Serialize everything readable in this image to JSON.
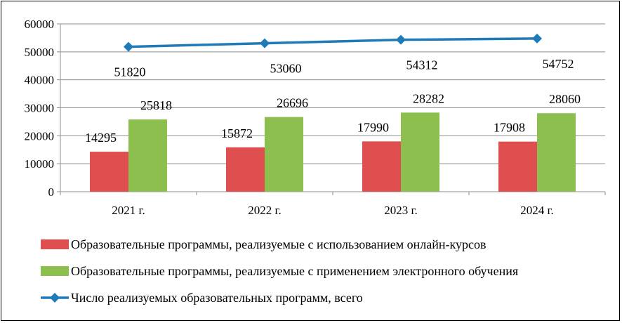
{
  "chart_data": {
    "type": "bar",
    "categories": [
      "2021 г.",
      "2022 г.",
      "2023 г.",
      "2024 г."
    ],
    "series": [
      {
        "name": "Образовательные программы, реализуемые с использованием онлайн-курсов",
        "type": "bar",
        "color": "#e04f4f",
        "values": [
          14295,
          15872,
          17990,
          17908
        ],
        "labels": [
          "14295",
          "15872",
          "17990",
          "17908"
        ]
      },
      {
        "name": "Образовательные программы, реализуемые с применением электронного обучения",
        "type": "bar",
        "color": "#8dbf4e",
        "values": [
          25818,
          26696,
          28282,
          28060
        ],
        "labels": [
          "25818",
          "26696",
          "28282",
          "28060"
        ]
      },
      {
        "name": "Число реализуемых образовательных программ, всего",
        "type": "line",
        "color": "#1f7ab8",
        "values": [
          51820,
          53060,
          54312,
          54752
        ],
        "labels": [
          "51820",
          "53060",
          "54312",
          "54752"
        ]
      }
    ],
    "ylim": [
      0,
      60000
    ],
    "yticks": [
      "0",
      "10000",
      "20000",
      "30000",
      "40000",
      "50000",
      "60000"
    ],
    "grid": true,
    "legend_position": "bottom"
  }
}
